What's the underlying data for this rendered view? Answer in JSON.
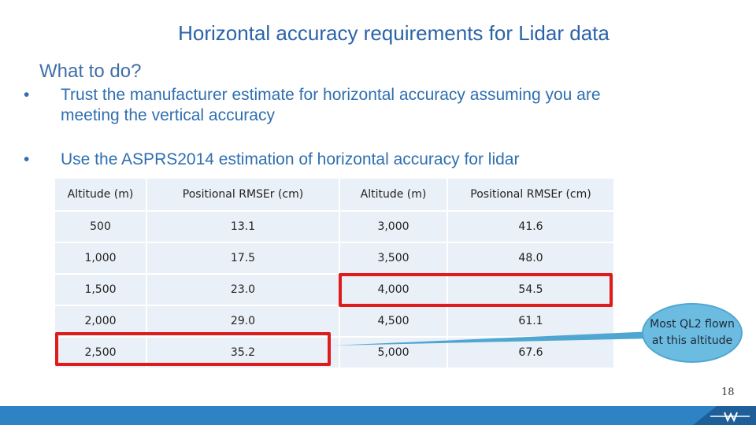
{
  "slide": {
    "title": "Horizontal accuracy requirements for Lidar data",
    "subtitle": "What to do?",
    "bullets": [
      {
        "marker": "•",
        "lines": [
          "Trust the manufacturer estimate for horizontal accuracy assuming you are",
          "meeting the vertical accuracy"
        ]
      },
      {
        "marker": "•",
        "lines": [
          "Use the ASPRS2014 estimation of horizontal accuracy for lidar"
        ]
      }
    ],
    "table": {
      "headers": [
        "Altitude (m)",
        "Positional RMSEr (cm)",
        "Altitude (m)",
        "Positional RMSEr (cm)"
      ],
      "rows": [
        [
          "500",
          "13.1",
          "3,000",
          "41.6"
        ],
        [
          "1,000",
          "17.5",
          "3,500",
          "48.0"
        ],
        [
          "1,500",
          "23.0",
          "4,000",
          "54.5"
        ],
        [
          "2,000",
          "29.0",
          "4,500",
          "61.1"
        ],
        [
          "2,500",
          "35.2",
          "5,000",
          "67.6"
        ]
      ]
    },
    "callout": {
      "text": "Most QL2 flown at this altitude"
    },
    "page_number": "18",
    "colors": {
      "title": "#2a63a8",
      "highlight": "#e01b1b",
      "callout": "#6bbce0",
      "footer": "#2d83c4",
      "row_alt": "#e9f0f7"
    }
  }
}
